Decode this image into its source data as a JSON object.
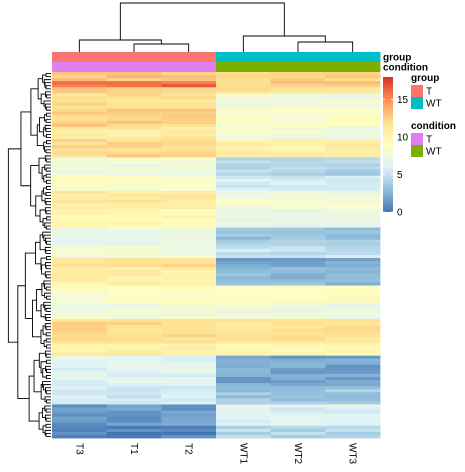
{
  "chart_data": {
    "type": "heatmap",
    "columns": [
      "T3",
      "T1",
      "T2",
      "WT1",
      "WT2",
      "WT3"
    ],
    "column_group": [
      "T",
      "T",
      "T",
      "WT",
      "WT",
      "WT"
    ],
    "column_condition": [
      "T",
      "T",
      "T",
      "WT",
      "WT",
      "WT"
    ],
    "annotation_rows": [
      "group",
      "condition"
    ],
    "legends": {
      "group": {
        "title": "group",
        "entries": [
          {
            "label": "T",
            "color": "#F8766D"
          },
          {
            "label": "WT",
            "color": "#00BFC4"
          }
        ]
      },
      "condition": {
        "title": "condition",
        "entries": [
          {
            "label": "T",
            "color": "#E07FF0"
          },
          {
            "label": "WT",
            "color": "#7CAE00"
          }
        ]
      }
    },
    "color_scale": {
      "min": 0,
      "max": 18,
      "ticks": [
        0,
        5,
        10,
        15
      ],
      "colors": [
        "#4575B4",
        "#91BFDB",
        "#E0F3F8",
        "#FFFFBF",
        "#FEE090",
        "#FC8D59",
        "#D73027"
      ]
    },
    "row_blocks": [
      {
        "rows": 3,
        "values": [
          13.0,
          13.0,
          13.0,
          12.5,
          12.5,
          12.5
        ]
      },
      {
        "rows": 2,
        "values": [
          16.0,
          16.0,
          16.0,
          12.5,
          12.5,
          12.5
        ]
      },
      {
        "rows": 2,
        "values": [
          12.8,
          12.8,
          12.8,
          11.5,
          11.5,
          11.5
        ]
      },
      {
        "rows": 5,
        "values": [
          11.8,
          11.8,
          11.8,
          7.5,
          7.5,
          7.5
        ]
      },
      {
        "rows": 6,
        "values": [
          12.5,
          12.5,
          12.5,
          8.5,
          8.5,
          8.5
        ]
      },
      {
        "rows": 4,
        "values": [
          11.0,
          11.0,
          11.0,
          7.8,
          7.8,
          7.8
        ]
      },
      {
        "rows": 6,
        "values": [
          12.3,
          12.3,
          12.3,
          10.5,
          10.5,
          10.5
        ]
      },
      {
        "rows": 6,
        "values": [
          7.5,
          7.5,
          7.5,
          4.2,
          4.2,
          4.2
        ]
      },
      {
        "rows": 5,
        "values": [
          8.8,
          8.8,
          8.8,
          5.5,
          5.5,
          5.5
        ]
      },
      {
        "rows": 6,
        "values": [
          11.0,
          11.0,
          11.0,
          7.8,
          7.8,
          7.8
        ]
      },
      {
        "rows": 6,
        "values": [
          9.5,
          9.5,
          9.5,
          7.0,
          7.0,
          7.0
        ]
      },
      {
        "rows": 6,
        "values": [
          7.0,
          7.0,
          7.0,
          3.5,
          3.5,
          3.5
        ]
      },
      {
        "rows": 4,
        "values": [
          7.8,
          7.8,
          7.8,
          5.0,
          5.0,
          5.0
        ]
      },
      {
        "rows": 3,
        "values": [
          12.0,
          12.0,
          12.0,
          2.0,
          2.0,
          2.0
        ]
      },
      {
        "rows": 6,
        "values": [
          10.5,
          10.5,
          10.5,
          3.0,
          3.0,
          3.0
        ]
      },
      {
        "rows": 6,
        "values": [
          8.5,
          8.5,
          8.5,
          9.0,
          9.0,
          9.0
        ]
      },
      {
        "rows": 5,
        "values": [
          7.8,
          7.8,
          7.8,
          7.5,
          7.5,
          7.5
        ]
      },
      {
        "rows": 8,
        "values": [
          12.0,
          12.0,
          12.0,
          11.5,
          11.5,
          11.5
        ]
      },
      {
        "rows": 4,
        "values": [
          10.5,
          10.5,
          10.5,
          10.0,
          10.0,
          10.0
        ]
      },
      {
        "rows": 10,
        "values": [
          6.2,
          6.2,
          6.2,
          2.0,
          2.0,
          2.0
        ]
      },
      {
        "rows": 6,
        "values": [
          5.5,
          5.5,
          5.5,
          3.5,
          3.5,
          3.5
        ]
      },
      {
        "rows": 7,
        "values": [
          1.5,
          1.5,
          1.5,
          6.0,
          6.0,
          6.0
        ]
      },
      {
        "rows": 4,
        "values": [
          0.5,
          0.5,
          0.5,
          4.5,
          4.5,
          4.5
        ]
      }
    ]
  }
}
